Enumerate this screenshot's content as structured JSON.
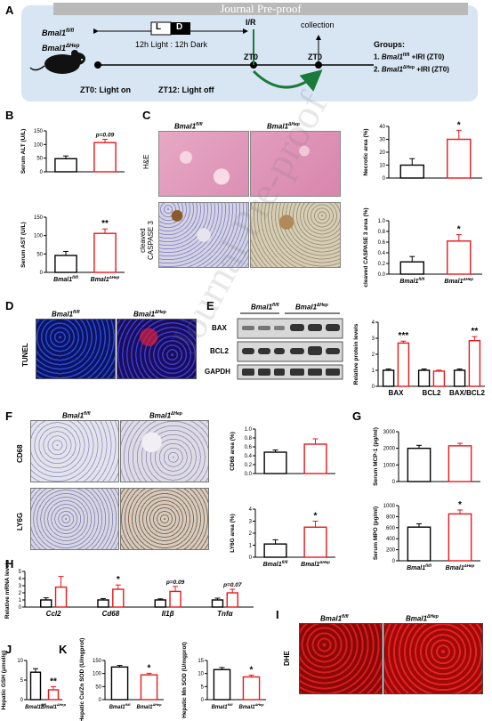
{
  "watermark": "Journal Pre-proof",
  "diagonal_watermark": "Journal Pre-proof",
  "panel_letters": [
    "A",
    "B",
    "C",
    "D",
    "E",
    "F",
    "G",
    "H",
    "I",
    "J",
    "K"
  ],
  "panelA": {
    "l_box": "L",
    "d_box": "D",
    "cycle": "12h Light : 12h Dark",
    "mouse1": "Bmal1",
    "mouse1_sup": "fl/fl",
    "mouse2": "Bmal1",
    "mouse2_sup": "ΔHep",
    "ir": "I/R",
    "collection": "collection",
    "zt0a": "ZT0",
    "zt0b": "ZT0",
    "zt0_note": "ZT0: Light on",
    "zt12_note": "ZT12: Light off",
    "groups_title": "Groups:",
    "group1_num": "1. ",
    "group1_gene": "Bmal1",
    "group1_sup": "fl/fl",
    "group1_tail": " +IRI (ZT0)",
    "group2_num": "2. ",
    "group2_gene": "Bmal1",
    "group2_sup": "ΔHep",
    "group2_tail": " +IRI (ZT0)"
  },
  "genotypes": {
    "g1": "Bmal1",
    "g1_sup": "fl/fl",
    "g2": "Bmal1",
    "g2_sup": "ΔHep"
  },
  "micro_labels": {
    "he": "H&E",
    "casp_line1": "cleaved",
    "casp_line2": "CASPASE 3",
    "tunel": "TUNEL",
    "cd68": "CD68",
    "ly6g": "LY6G",
    "dhe": "DHE"
  },
  "blot": {
    "bax": "BAX",
    "bcl2": "BCL2",
    "gapdh": "GAPDH"
  },
  "colors": {
    "ctrl": "#000000",
    "ko": "#e8181c",
    "banner": "#d8e6f3",
    "arrow": "#1a7a3a",
    "watermark": "#7a7a7a"
  },
  "chart_data": [
    {
      "id": "B1",
      "type": "bar",
      "ylabel": "Serum ALT (U/L)",
      "yticks": [
        "0",
        "50",
        "100",
        "150"
      ],
      "ylim": [
        0,
        150
      ],
      "categories": [
        "Bmal1 fl/fl",
        "Bmal1 ΔHep"
      ],
      "values": [
        48,
        107
      ],
      "errors": [
        10,
        12
      ],
      "annotation": "p=0.09"
    },
    {
      "id": "B2",
      "type": "bar",
      "ylabel": "Serum AST (U/L)",
      "yticks": [
        "0",
        "50",
        "100",
        "150"
      ],
      "ylim": [
        0,
        150
      ],
      "categories": [
        "Bmal1 fl/fl",
        "Bmal1 ΔHep"
      ],
      "values": [
        46,
        106
      ],
      "errors": [
        11,
        12
      ],
      "annotation": "**"
    },
    {
      "id": "C1",
      "type": "bar",
      "ylabel": "Necrotic area (%)",
      "yticks": [
        "0",
        "10",
        "20",
        "30",
        "40"
      ],
      "ylim": [
        0,
        40
      ],
      "categories": [
        "Bmal1 fl/fl",
        "Bmal1 ΔHep"
      ],
      "values": [
        10,
        30
      ],
      "errors": [
        5,
        7
      ],
      "annotation": "*"
    },
    {
      "id": "C2",
      "type": "bar",
      "ylabel": "cleaved CASPASE 3 area (%)",
      "yticks": [
        "0.0",
        "0.2",
        "0.4",
        "0.6",
        "0.8",
        "1.0"
      ],
      "ylim": [
        0,
        1.0
      ],
      "categories": [
        "Bmal1 fl/fl",
        "Bmal1 ΔHep"
      ],
      "values": [
        0.23,
        0.62
      ],
      "errors": [
        0.1,
        0.12
      ],
      "annotation": "*"
    },
    {
      "id": "E",
      "type": "bar",
      "ylabel": "Relative protein levels",
      "yticks": [
        "0",
        "1",
        "2",
        "3",
        "4"
      ],
      "ylim": [
        0,
        4
      ],
      "categories": [
        "BAX",
        "BCL2",
        "BAX/BCL2"
      ],
      "series": [
        {
          "name": "Bmal1 fl/fl",
          "values": [
            1,
            1,
            1
          ],
          "errors": [
            0.08,
            0.08,
            0.08
          ]
        },
        {
          "name": "Bmal1 ΔHep",
          "values": [
            2.7,
            0.95,
            2.85
          ],
          "errors": [
            0.12,
            0.06,
            0.25
          ]
        }
      ],
      "annotations": [
        "***",
        "",
        "**"
      ]
    },
    {
      "id": "F1",
      "type": "bar",
      "ylabel": "CD68 area (%)",
      "yticks": [
        "0.0",
        "0.2",
        "0.4",
        "0.6",
        "0.8",
        "1.0"
      ],
      "ylim": [
        0,
        1.0
      ],
      "categories": [
        "Bmal1 fl/fl",
        "Bmal1 ΔHep"
      ],
      "values": [
        0.48,
        0.66
      ],
      "errors": [
        0.05,
        0.12
      ],
      "annotation": ""
    },
    {
      "id": "F2",
      "type": "bar",
      "ylabel": "LY6G area (%)",
      "yticks": [
        "0",
        "1",
        "2",
        "3",
        "4"
      ],
      "ylim": [
        0,
        4
      ],
      "categories": [
        "Bmal1 fl/fl",
        "Bmal1 ΔHep"
      ],
      "values": [
        1.1,
        2.5
      ],
      "errors": [
        0.35,
        0.5
      ],
      "annotation": "*"
    },
    {
      "id": "G1",
      "type": "bar",
      "ylabel": "Serum MCP-1 (pg/ml)",
      "yticks": [
        "0",
        "1000",
        "2000",
        "3000"
      ],
      "ylim": [
        0,
        3000
      ],
      "categories": [
        "Bmal1 fl/fl",
        "Bmal1 ΔHep"
      ],
      "values": [
        2000,
        2150
      ],
      "errors": [
        180,
        150
      ],
      "annotation": ""
    },
    {
      "id": "G2",
      "type": "bar",
      "ylabel": "Serum MPO (pg/ml)",
      "yticks": [
        "0",
        "200",
        "400",
        "600",
        "800",
        "1000"
      ],
      "ylim": [
        0,
        1000
      ],
      "categories": [
        "Bmal1 fl/fl",
        "Bmal1 ΔHep"
      ],
      "values": [
        610,
        850
      ],
      "errors": [
        60,
        70
      ],
      "annotation": "*"
    },
    {
      "id": "H",
      "type": "bar",
      "ylabel": "Relative mRNA levels",
      "yticks": [
        "0",
        "1",
        "2",
        "3",
        "4",
        "5"
      ],
      "ylim": [
        0,
        5
      ],
      "categories": [
        "Ccl2",
        "Cd68",
        "Il1β",
        "Tnfα"
      ],
      "series": [
        {
          "name": "Bmal1 fl/fl",
          "values": [
            1,
            1,
            1,
            1
          ],
          "errors": [
            0.3,
            0.2,
            0.15,
            0.25
          ]
        },
        {
          "name": "Bmal1 ΔHep",
          "values": [
            2.8,
            2.5,
            2.2,
            2.0
          ],
          "errors": [
            1.5,
            0.6,
            0.7,
            0.5
          ]
        }
      ],
      "annotations": [
        "",
        "*",
        "p=0.09",
        "p=0.07"
      ]
    },
    {
      "id": "J",
      "type": "bar",
      "ylabel": "Hepatic GSH (μmol/g)",
      "yticks": [
        "0",
        "5",
        "10"
      ],
      "ylim": [
        0,
        10
      ],
      "categories": [
        "Bmal1 fl/fl",
        "Bmal1 ΔHep"
      ],
      "values": [
        7,
        2.5
      ],
      "errors": [
        0.9,
        0.8
      ],
      "annotation": "**"
    },
    {
      "id": "K1",
      "type": "bar",
      "ylabel": "Hepatic Cu/Zn SOD (U/mgprot)",
      "yticks": [
        "0",
        "50",
        "100",
        "150"
      ],
      "ylim": [
        0,
        150
      ],
      "categories": [
        "Bmal1 fl/fl",
        "Bmal1 ΔHep"
      ],
      "values": [
        125,
        95
      ],
      "errors": [
        6,
        6
      ],
      "annotation": "*"
    },
    {
      "id": "K2",
      "type": "bar",
      "ylabel": "Hepatic Mn SOD (U/mgprot)",
      "yticks": [
        "0",
        "5",
        "10",
        "15"
      ],
      "ylim": [
        0,
        15
      ],
      "categories": [
        "Bmal1 fl/fl",
        "Bmal1 ΔHep"
      ],
      "values": [
        11.5,
        8.7
      ],
      "errors": [
        0.8,
        0.7
      ],
      "annotation": "*"
    }
  ]
}
